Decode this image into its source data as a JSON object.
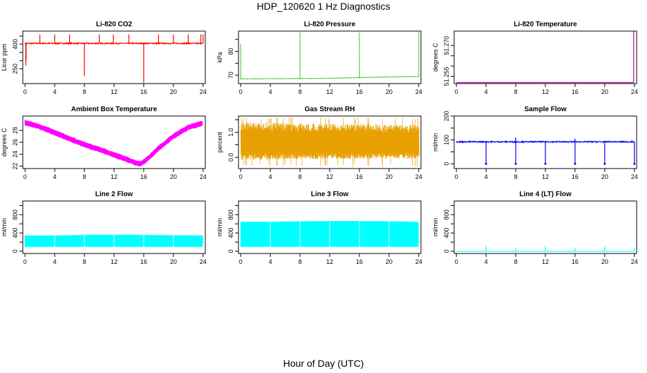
{
  "title": "HDP_120620  1 Hz Diagnostics",
  "xlabel": "Hour of Day (UTC)",
  "chart_data": [
    {
      "type": "line",
      "title": "Li-820 CO2",
      "ylabel": "Licor ppm",
      "color": "#ff0000",
      "xlim": [
        -0.3,
        24.3
      ],
      "ylim": [
        160,
        480
      ],
      "xticks": [
        0,
        4,
        8,
        12,
        16,
        20,
        24
      ],
      "yticks": [
        250,
        300,
        350,
        400,
        450
      ],
      "yticklabels": [
        "250",
        "",
        "",
        "400",
        ""
      ],
      "baseline": 405,
      "band": 7,
      "spikes": [
        {
          "x": 0.1,
          "y": 270
        },
        {
          "x": 0.15,
          "y": 300
        },
        {
          "x": 2.0,
          "y": 460
        },
        {
          "x": 4.0,
          "y": 460
        },
        {
          "x": 6.0,
          "y": 460
        },
        {
          "x": 8.0,
          "y": 205
        },
        {
          "x": 10.0,
          "y": 460
        },
        {
          "x": 11.9,
          "y": 460
        },
        {
          "x": 14.0,
          "y": 460
        },
        {
          "x": 16.0,
          "y": 165
        },
        {
          "x": 18.0,
          "y": 460
        },
        {
          "x": 20.0,
          "y": 460
        },
        {
          "x": 22.0,
          "y": 460
        },
        {
          "x": 23.7,
          "y": 460
        },
        {
          "x": 24.0,
          "y": 460
        }
      ]
    },
    {
      "type": "line",
      "title": "Li-820 Pressure",
      "ylabel": "kPa",
      "color": "#00b400",
      "xlim": [
        -0.3,
        24.3
      ],
      "ylim": [
        66.5,
        88.5
      ],
      "xticks": [
        0,
        4,
        8,
        12,
        16,
        20,
        24
      ],
      "yticks": [
        70,
        75,
        80,
        85
      ],
      "yticklabels": [
        "70",
        "",
        "80",
        ""
      ],
      "x": [
        0,
        0.3,
        8,
        12,
        13,
        16,
        20,
        24
      ],
      "y": [
        68.5,
        68.5,
        68.6,
        68.7,
        68.8,
        69.0,
        69.3,
        69.5
      ],
      "spikes": [
        {
          "x": 0.0,
          "y": 83
        },
        {
          "x": 8.0,
          "y": 88
        },
        {
          "x": 16.0,
          "y": 88
        },
        {
          "x": 24.0,
          "y": 88
        }
      ]
    },
    {
      "type": "line",
      "title": "Li-820 Temperature",
      "ylabel": "degrees C",
      "color": "#b400b4",
      "xlim": [
        -0.3,
        24.3
      ],
      "ylim": [
        51.2515,
        51.277
      ],
      "xticks": [
        0,
        4,
        8,
        12,
        16,
        20,
        24
      ],
      "yticks": [
        51.255,
        51.26,
        51.265,
        51.27
      ],
      "yticklabels": [
        "51.255",
        "",
        "",
        "51.270"
      ],
      "x": [
        0,
        23.9
      ],
      "y": [
        51.252,
        51.252
      ],
      "spikes": [
        {
          "x": 23.9,
          "y": 51.277
        }
      ]
    },
    {
      "type": "line",
      "title": "Ambient Box Temperature",
      "ylabel": "degrees C",
      "color": "#ff00ff",
      "xlim": [
        -0.3,
        24.3
      ],
      "ylim": [
        21.6,
        30.4
      ],
      "xticks": [
        0,
        4,
        8,
        12,
        16,
        20,
        24
      ],
      "yticks": [
        22,
        24,
        26,
        28
      ],
      "yticklabels": [
        "22",
        "24",
        "26",
        "28"
      ],
      "band": 0.6,
      "x": [
        0,
        2,
        4,
        6,
        8,
        10,
        12,
        14,
        15,
        15.6,
        16.5,
        18,
        20,
        22,
        24
      ],
      "y": [
        29.3,
        28.6,
        27.6,
        26.6,
        25.6,
        24.8,
        23.9,
        23.0,
        22.5,
        22.4,
        23.2,
        25.0,
        27.0,
        28.5,
        29.2
      ]
    },
    {
      "type": "area",
      "title": "Gas Stream RH",
      "ylabel": "percent",
      "color": "#e8a000",
      "xlim": [
        -0.3,
        24.3
      ],
      "ylim": [
        -0.45,
        1.65
      ],
      "xticks": [
        0,
        4,
        8,
        12,
        16,
        20,
        24
      ],
      "yticks": [
        0.0,
        0.5,
        1.0,
        1.5
      ],
      "yticklabels": [
        "0.0",
        "",
        "1.0",
        ""
      ],
      "x": [
        0,
        24
      ],
      "upper": [
        1.4,
        1.3
      ],
      "lower": [
        -0.1,
        -0.05
      ]
    },
    {
      "type": "line",
      "title": "Sample Flow",
      "ylabel": "ml/min",
      "color": "#0000ff",
      "xlim": [
        -0.3,
        24.3
      ],
      "ylim": [
        -20,
        200
      ],
      "xticks": [
        0,
        4,
        8,
        12,
        16,
        20,
        24
      ],
      "yticks": [
        0,
        50,
        100,
        150,
        200
      ],
      "yticklabels": [
        "0",
        "",
        "100",
        "",
        "200"
      ],
      "baseline": 92,
      "band": 5,
      "spikes": [
        {
          "x": 4.0,
          "y": 0
        },
        {
          "x": 8.0,
          "y": 0
        },
        {
          "x": 8.0,
          "y": 110
        },
        {
          "x": 12.0,
          "y": 0
        },
        {
          "x": 16.0,
          "y": 0
        },
        {
          "x": 16.0,
          "y": 105
        },
        {
          "x": 20.0,
          "y": 0
        },
        {
          "x": 24.0,
          "y": 0
        }
      ]
    },
    {
      "type": "area",
      "title": "Line 2 Flow",
      "ylabel": "ml/min",
      "color": "#00ffff",
      "xlim": [
        -0.3,
        24.3
      ],
      "ylim": [
        -50,
        1100
      ],
      "xticks": [
        0,
        4,
        8,
        12,
        16,
        20,
        24
      ],
      "yticks": [
        0,
        200,
        400,
        600,
        800,
        1000
      ],
      "yticklabels": [
        "0",
        "",
        "400",
        "",
        "800",
        ""
      ],
      "x": [
        0,
        4,
        8,
        12,
        16,
        20,
        24
      ],
      "upper": [
        340,
        340,
        350,
        355,
        350,
        345,
        340
      ],
      "lower": [
        100,
        100,
        100,
        100,
        100,
        100,
        100
      ],
      "gaps": [
        4,
        8,
        12,
        16,
        20
      ]
    },
    {
      "type": "area",
      "title": "Line 3 Flow",
      "ylabel": "ml/min",
      "color": "#00ffff",
      "xlim": [
        -0.3,
        24.3
      ],
      "ylim": [
        -50,
        1100
      ],
      "xticks": [
        0,
        4,
        8,
        12,
        16,
        20,
        24
      ],
      "yticks": [
        0,
        200,
        400,
        600,
        800,
        1000
      ],
      "yticklabels": [
        "0",
        "",
        "400",
        "",
        "800",
        ""
      ],
      "x": [
        0,
        4,
        8,
        12,
        16,
        20,
        24
      ],
      "upper": [
        640,
        640,
        650,
        655,
        655,
        650,
        640
      ],
      "lower": [
        100,
        100,
        100,
        100,
        100,
        100,
        100
      ],
      "gaps": [
        4,
        8,
        12,
        16,
        20
      ]
    },
    {
      "type": "line",
      "title": "Line 4 (LT) Flow",
      "ylabel": "ml/min",
      "color": "#00ffff",
      "xlim": [
        -0.3,
        24.3
      ],
      "ylim": [
        -50,
        1100
      ],
      "xticks": [
        0,
        4,
        8,
        12,
        16,
        20,
        24
      ],
      "yticks": [
        0,
        200,
        400,
        600,
        800,
        1000
      ],
      "yticklabels": [
        "0",
        "",
        "400",
        "",
        "800",
        ""
      ],
      "baseline": 0,
      "spikes": [
        {
          "x": 4.0,
          "y": 110
        },
        {
          "x": 8.0,
          "y": 70
        },
        {
          "x": 12.0,
          "y": 110
        },
        {
          "x": 16.0,
          "y": 70
        },
        {
          "x": 20.0,
          "y": 110
        },
        {
          "x": 24.0,
          "y": 70
        }
      ]
    }
  ]
}
